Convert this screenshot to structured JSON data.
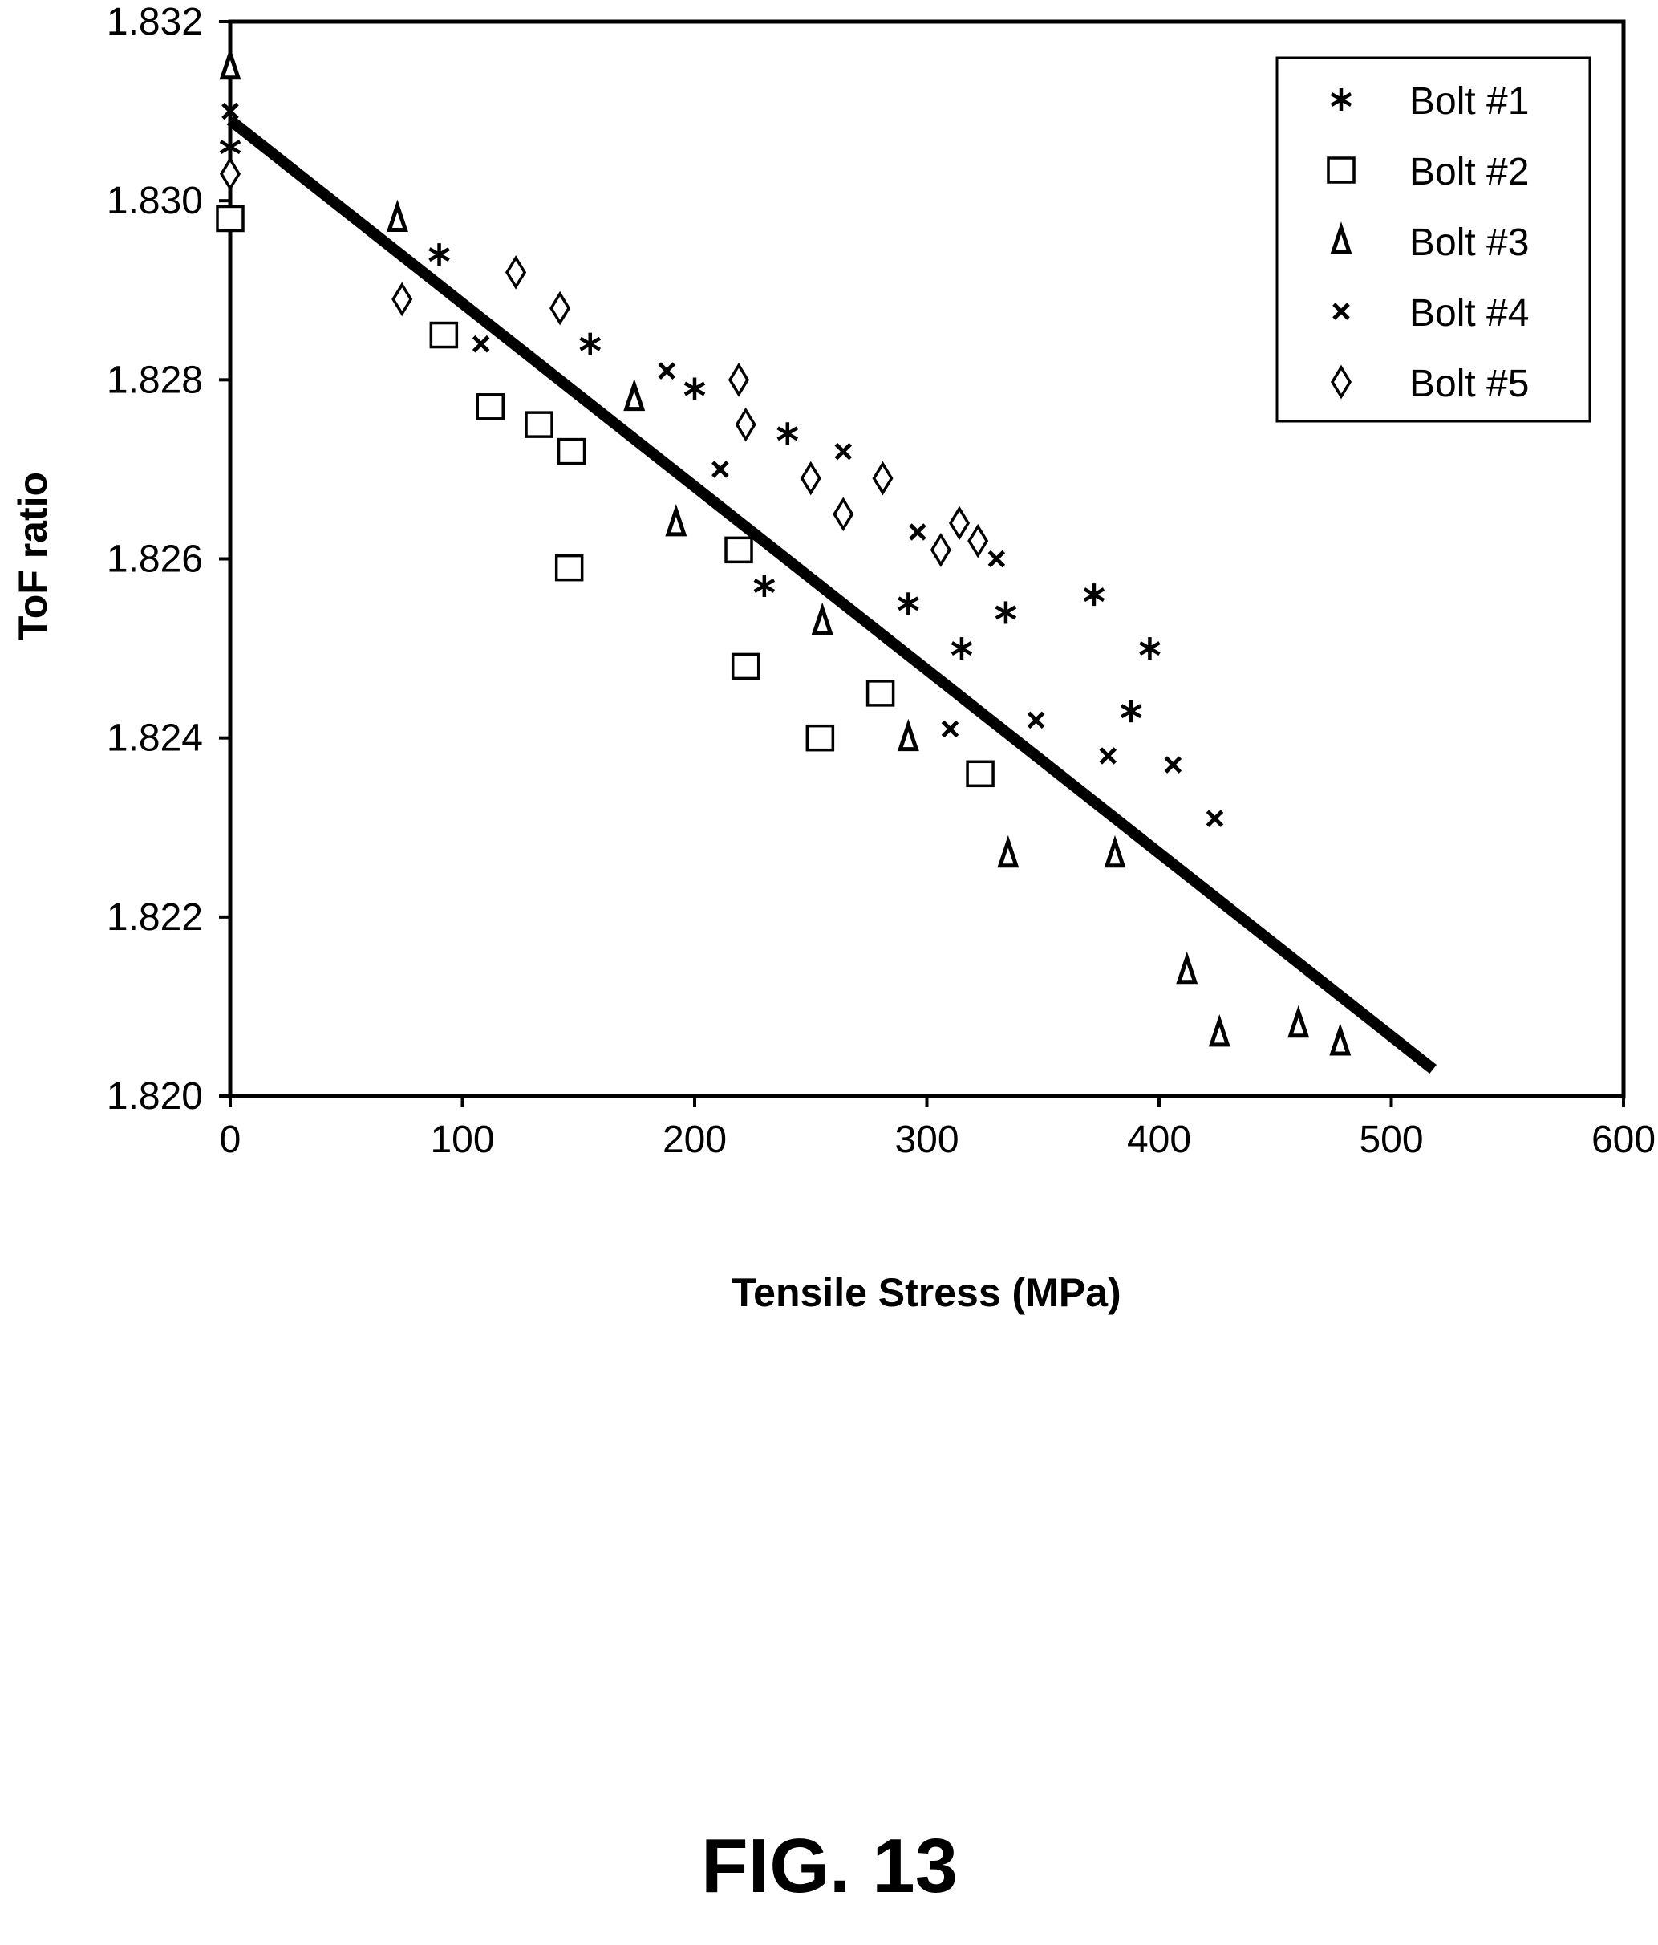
{
  "figure_caption": "FIG. 13",
  "chart_data": {
    "type": "scatter",
    "xlabel": "Tensile Stress (MPa)",
    "ylabel": "ToF ratio",
    "xlim": [
      0,
      600
    ],
    "ylim": [
      1.82,
      1.832
    ],
    "x_ticks": [
      "0",
      "100",
      "200",
      "300",
      "400",
      "500",
      "600"
    ],
    "y_ticks": [
      "1.820",
      "1.822",
      "1.824",
      "1.826",
      "1.828",
      "1.830",
      "1.832"
    ],
    "x_tick_values": [
      0,
      100,
      200,
      300,
      400,
      500,
      600
    ],
    "y_tick_values": [
      1.82,
      1.822,
      1.824,
      1.826,
      1.828,
      1.83,
      1.832
    ],
    "grid": false,
    "legend_position": "top-right",
    "series": [
      {
        "name": "Bolt #1",
        "marker": "asterisk",
        "points": [
          [
            0,
            1.8306
          ],
          [
            90,
            1.8294
          ],
          [
            155,
            1.8284
          ],
          [
            200,
            1.8279
          ],
          [
            240,
            1.8274
          ],
          [
            230,
            1.8257
          ],
          [
            292,
            1.8255
          ],
          [
            315,
            1.825
          ],
          [
            334,
            1.8254
          ],
          [
            372,
            1.8256
          ],
          [
            396,
            1.825
          ],
          [
            388,
            1.8243
          ]
        ]
      },
      {
        "name": "Bolt #2",
        "marker": "square",
        "points": [
          [
            0,
            1.8298
          ],
          [
            92,
            1.8285
          ],
          [
            112,
            1.8277
          ],
          [
            133,
            1.8275
          ],
          [
            147,
            1.8272
          ],
          [
            146,
            1.8259
          ],
          [
            219,
            1.8261
          ],
          [
            222,
            1.8248
          ],
          [
            254,
            1.824
          ],
          [
            280,
            1.8245
          ],
          [
            323,
            1.8236
          ]
        ]
      },
      {
        "name": "Bolt #3",
        "marker": "triangle",
        "points": [
          [
            0,
            1.8315
          ],
          [
            72,
            1.8298
          ],
          [
            174,
            1.8278
          ],
          [
            192,
            1.8264
          ],
          [
            255,
            1.8253
          ],
          [
            292,
            1.824
          ],
          [
            335,
            1.8227
          ],
          [
            381,
            1.8227
          ],
          [
            412,
            1.8214
          ],
          [
            426,
            1.8207
          ],
          [
            460,
            1.8208
          ],
          [
            478,
            1.8206
          ]
        ]
      },
      {
        "name": "Bolt #4",
        "marker": "x",
        "points": [
          [
            0,
            1.831
          ],
          [
            108,
            1.8284
          ],
          [
            188,
            1.8281
          ],
          [
            211,
            1.827
          ],
          [
            264,
            1.8272
          ],
          [
            296,
            1.8263
          ],
          [
            330,
            1.826
          ],
          [
            310,
            1.8241
          ],
          [
            347,
            1.8242
          ],
          [
            378,
            1.8238
          ],
          [
            406,
            1.8237
          ],
          [
            424,
            1.8231
          ]
        ]
      },
      {
        "name": "Bolt #5",
        "marker": "diamond",
        "points": [
          [
            0,
            1.8303
          ],
          [
            74,
            1.8289
          ],
          [
            123,
            1.8292
          ],
          [
            142,
            1.8288
          ],
          [
            219,
            1.828
          ],
          [
            222,
            1.8275
          ],
          [
            250,
            1.8269
          ],
          [
            264,
            1.8265
          ],
          [
            281,
            1.8269
          ],
          [
            314,
            1.8264
          ],
          [
            306,
            1.8261
          ],
          [
            322,
            1.8262
          ]
        ]
      }
    ],
    "fit_line": {
      "points": [
        [
          0,
          1.8309
        ],
        [
          518,
          1.8203
        ]
      ]
    }
  }
}
